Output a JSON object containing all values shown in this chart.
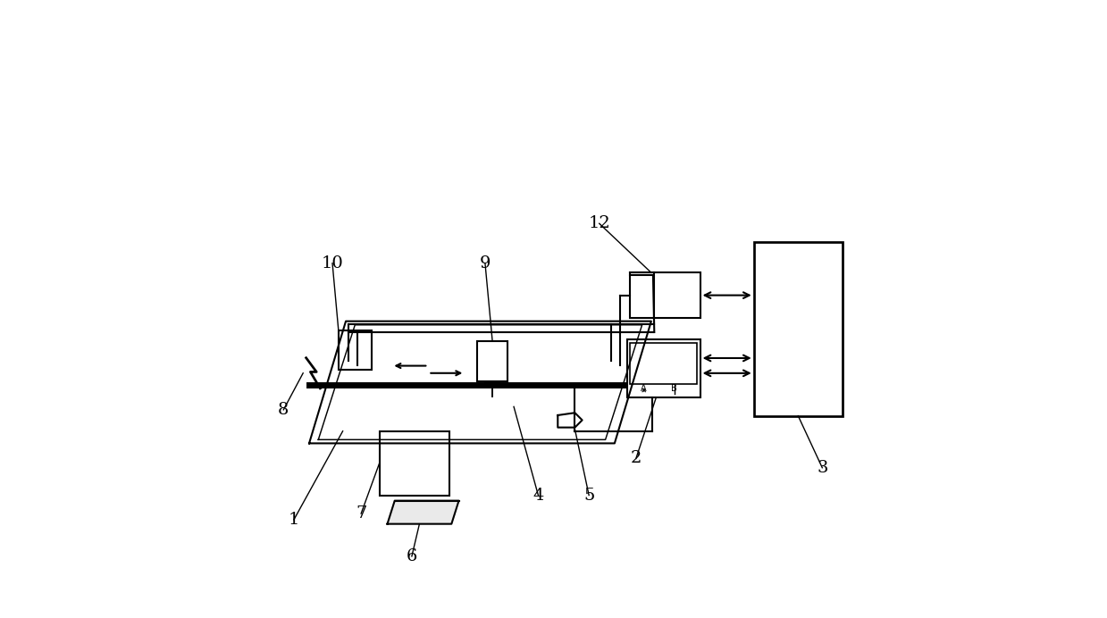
{
  "bg_color": "#ffffff",
  "line_color": "#000000",
  "label_color": "#000000",
  "figsize": [
    12.39,
    6.92
  ],
  "dpi": 100
}
